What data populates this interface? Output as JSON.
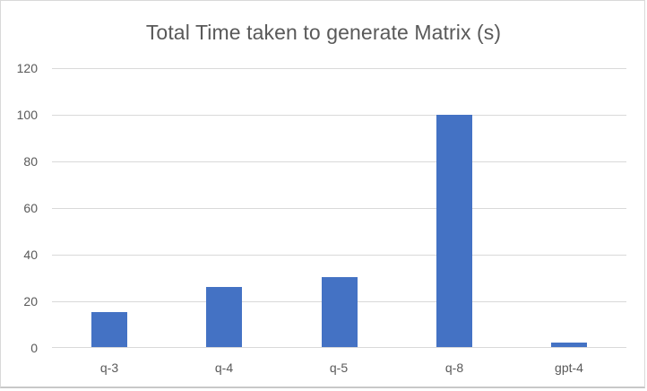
{
  "chart_data": {
    "type": "bar",
    "title": "Total Time taken to generate Matrix (s)",
    "categories": [
      "q-3",
      "q-4",
      "q-5",
      "q-8",
      "gpt-4"
    ],
    "values": [
      15,
      26,
      30,
      100,
      2
    ],
    "xlabel": "",
    "ylabel": "",
    "ylim": [
      0,
      120
    ],
    "yticks": [
      0,
      20,
      40,
      60,
      80,
      100,
      120
    ],
    "ytick_labels": [
      "0",
      "20",
      "40",
      "60",
      "80",
      "100",
      "120"
    ],
    "grid": true,
    "legend": null,
    "bar_color": "#4472c4"
  }
}
